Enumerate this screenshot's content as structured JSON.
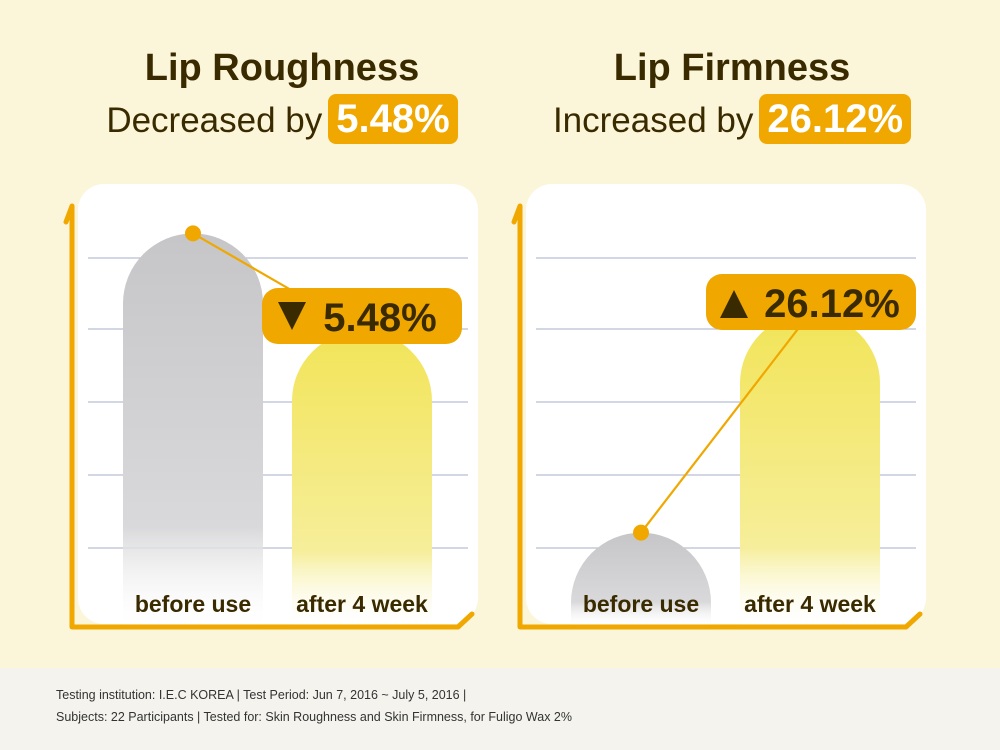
{
  "colors": {
    "background": "#fbf6d9",
    "accent": "#f0a800",
    "text": "#3a2a00",
    "grid": "#b9bfd2",
    "before_bar": "#c9c9cb",
    "after_bar": "#f3e65a"
  },
  "left_panel": {
    "title": "Lip Roughness",
    "subtitle_text": "Decreased by",
    "highlight": "5.48%",
    "badge_icon": "down-triangle-icon",
    "badge_text": "5.48%"
  },
  "right_panel": {
    "title": "Lip Firmness",
    "subtitle_text": "Increased by",
    "highlight": "26.12%",
    "badge_icon": "up-triangle-icon",
    "badge_text": "26.12%"
  },
  "chart_data": [
    {
      "type": "bar",
      "title": "Lip Roughness",
      "categories": [
        "before use",
        "after 4 week"
      ],
      "values": [
        100,
        94.52
      ],
      "change_label": "5.48%",
      "direction": "decrease",
      "ylim": [
        78,
        103
      ]
    },
    {
      "type": "bar",
      "title": "Lip Firmness",
      "categories": [
        "before use",
        "after 4 week"
      ],
      "values": [
        100,
        126.12
      ],
      "change_label": "26.12%",
      "direction": "increase",
      "ylim": [
        89,
        142
      ]
    }
  ],
  "footer": {
    "line1": "Testing institution: I.E.C KOREA | Test Period: Jun 7, 2016 ~ July 5, 2016 |",
    "line2": "Subjects: 22 Participants | Tested for: Skin Roughness and Skin Firmness, for Fuligo Wax 2%"
  }
}
